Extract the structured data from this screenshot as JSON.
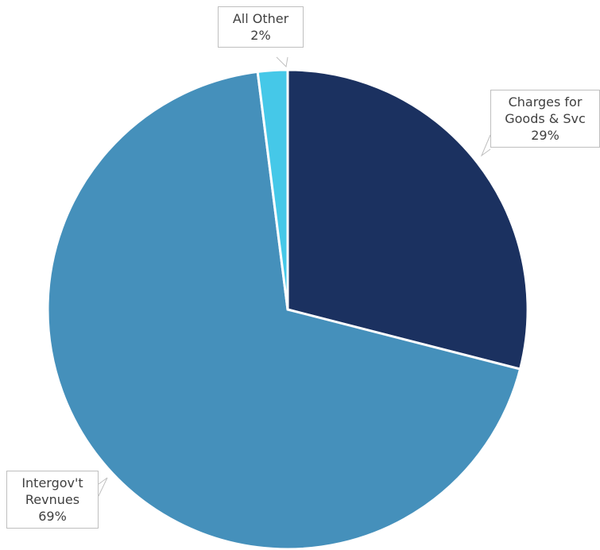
{
  "chart_data": {
    "type": "pie",
    "categories": [
      "Charges for Goods & Svc",
      "Intergov't Revnues",
      "All Other"
    ],
    "values": [
      29,
      69,
      2
    ],
    "value_labels": [
      "29%",
      "69%",
      "2%"
    ],
    "colors": [
      "#1b3160",
      "#4590bb",
      "#45c8e8"
    ]
  }
}
